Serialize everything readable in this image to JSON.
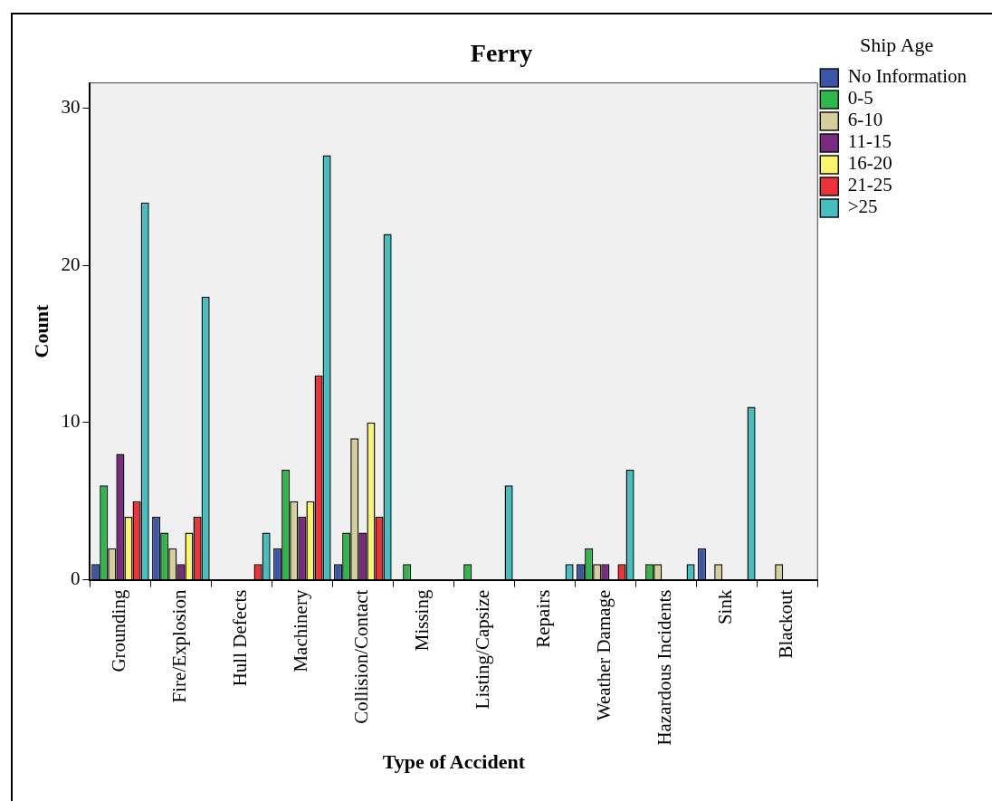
{
  "chart_data": {
    "type": "bar",
    "title": "Ferry",
    "xlabel": "Type of Accident",
    "ylabel": "Count",
    "legend_title": "Ship Age",
    "legend": "top right",
    "grid": false,
    "categories": [
      "Grounding",
      "Fire/Explosion",
      "Hull Defects",
      "Machinery",
      "Collision/Contact",
      "Missing",
      "Listing/Capsize",
      "Repairs",
      "Weather Damage",
      "Hazardous Incidents",
      "Sink",
      "Blackout"
    ],
    "ylim": [
      0,
      31.6
    ],
    "yticks": [
      0,
      10,
      20,
      30
    ],
    "series": [
      {
        "name": "No Information",
        "color": "#3b55a8",
        "values": [
          1,
          4,
          null,
          2,
          1,
          null,
          null,
          null,
          1,
          null,
          2,
          null
        ]
      },
      {
        "name": "0-5",
        "color": "#2db84a",
        "values": [
          6,
          3,
          null,
          7,
          3,
          1,
          1,
          null,
          2,
          1,
          null,
          null
        ]
      },
      {
        "name": "6-10",
        "color": "#d4cf98",
        "values": [
          2,
          2,
          null,
          5,
          9,
          null,
          null,
          null,
          1,
          1,
          1,
          1
        ]
      },
      {
        "name": "11-15",
        "color": "#7a2a82",
        "values": [
          8,
          1,
          null,
          4,
          3,
          null,
          null,
          null,
          1,
          null,
          null,
          null
        ]
      },
      {
        "name": "16-20",
        "color": "#fbf56a",
        "values": [
          4,
          3,
          null,
          5,
          10,
          null,
          null,
          null,
          null,
          null,
          null,
          null
        ]
      },
      {
        "name": "21-25",
        "color": "#ee3338",
        "values": [
          5,
          4,
          1,
          13,
          4,
          null,
          null,
          null,
          1,
          null,
          null,
          null
        ]
      },
      {
        "name": ">25",
        "color": "#44bfc1",
        "values": [
          24,
          18,
          3,
          27,
          22,
          null,
          6,
          1,
          7,
          1,
          11,
          null
        ]
      }
    ]
  }
}
